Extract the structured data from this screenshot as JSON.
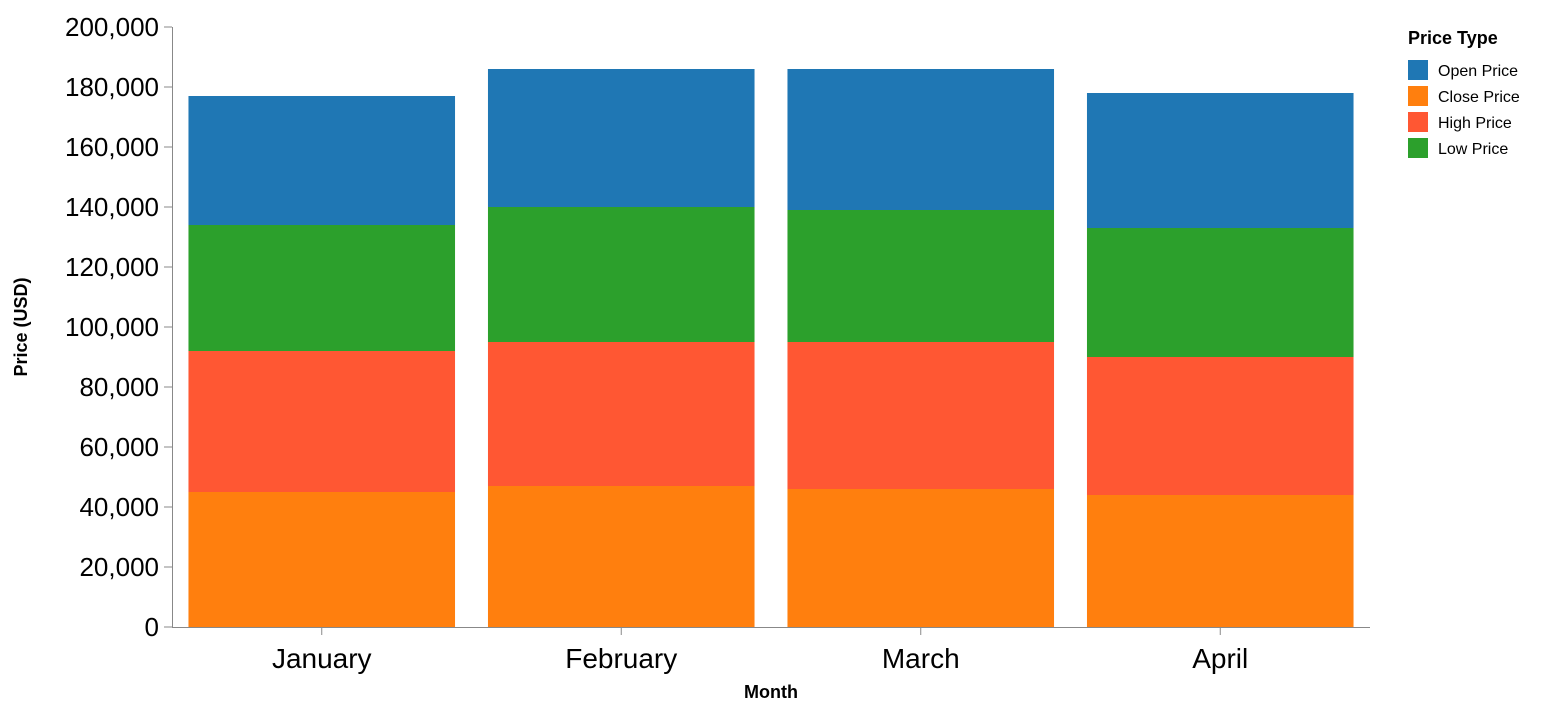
{
  "chart_data": {
    "type": "bar",
    "stacked": true,
    "title": "",
    "xlabel": "Month",
    "ylabel": "Price (USD)",
    "ylim": [
      0,
      200000
    ],
    "yticks": [
      0,
      20000,
      40000,
      60000,
      80000,
      100000,
      120000,
      140000,
      160000,
      180000,
      200000
    ],
    "ytick_labels": [
      "0",
      "20,000",
      "40,000",
      "60,000",
      "80,000",
      "100,000",
      "120,000",
      "140,000",
      "160,000",
      "180,000",
      "200,000"
    ],
    "categories": [
      "January",
      "February",
      "March",
      "April"
    ],
    "stack_order": [
      "Close Price",
      "High Price",
      "Low Price",
      "Open Price"
    ],
    "series": [
      {
        "name": "Open Price",
        "color": "#1f77b4",
        "values": [
          43000,
          46000,
          47000,
          45000
        ]
      },
      {
        "name": "Close Price",
        "color": "#ff7f0e",
        "values": [
          45000,
          47000,
          46000,
          44000
        ]
      },
      {
        "name": "High Price",
        "color": "#ff5733",
        "values": [
          47000,
          48000,
          49000,
          46000
        ]
      },
      {
        "name": "Low Price",
        "color": "#2ca02c",
        "values": [
          42000,
          45000,
          44000,
          43000
        ]
      }
    ],
    "grid": false,
    "legend": {
      "title": "Price Type",
      "position": "right",
      "entries": [
        "Open Price",
        "Close Price",
        "High Price",
        "Low Price"
      ]
    }
  }
}
